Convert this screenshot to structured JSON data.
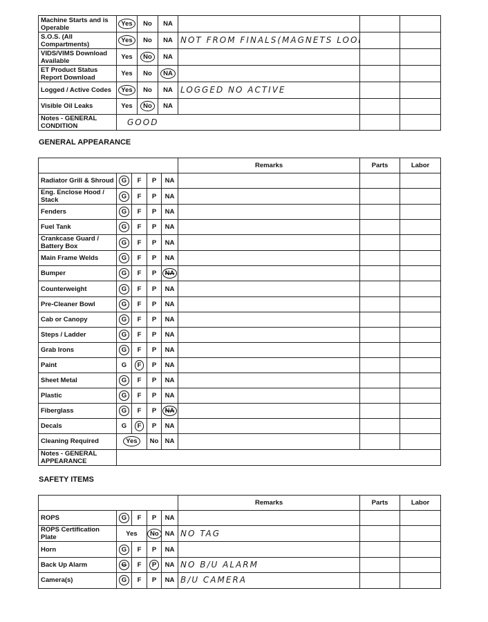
{
  "top": {
    "options": [
      "Yes",
      "No",
      "NA"
    ],
    "rows": [
      {
        "label": "Machine Starts and is Operable",
        "selected": "Yes",
        "remarks": ""
      },
      {
        "label": "S.O.S. (All Compartments)",
        "selected": "Yes",
        "remarks": "NOT FROM FINALS(MAGNETS LOOK OK"
      },
      {
        "label": "VIDS/VIMS Download Available",
        "selected": "No",
        "remarks": ""
      },
      {
        "label": "ET Product Status Report Download",
        "selected": "NA",
        "remarks": ""
      },
      {
        "label": "Logged / Active Codes",
        "selected": "Yes",
        "remarks": "LOGGED      NO ACTIVE"
      },
      {
        "label": "Visible Oil Leaks",
        "selected": "No",
        "remarks": ""
      }
    ],
    "notes": {
      "label": "Notes - GENERAL CONDITION",
      "value": "GOOD"
    }
  },
  "general": {
    "title": "GENERAL APPEARANCE",
    "headers": {
      "remarks": "Remarks",
      "parts": "Parts",
      "labor": "Labor"
    },
    "options": [
      "G",
      "F",
      "P",
      "NA"
    ],
    "rows": [
      {
        "label": "Radiator Grill & Shroud",
        "selected": "G"
      },
      {
        "label": "Eng. Enclose Hood / Stack",
        "selected": "G"
      },
      {
        "label": "Fenders",
        "selected": "G"
      },
      {
        "label": "Fuel Tank",
        "selected": "G"
      },
      {
        "label": "Crankcase Guard / Battery Box",
        "selected": "G"
      },
      {
        "label": "Main Frame Welds",
        "selected": "G"
      },
      {
        "label": "Bumper",
        "selected": "G",
        "crossed": "NA"
      },
      {
        "label": "Counterweight",
        "selected": "G"
      },
      {
        "label": "Pre-Cleaner Bowl",
        "selected": "G"
      },
      {
        "label": "Cab or Canopy",
        "selected": "G"
      },
      {
        "label": "Steps / Ladder",
        "selected": "G"
      },
      {
        "label": "Grab Irons",
        "selected": "G"
      },
      {
        "label": "Paint",
        "selected": "F"
      },
      {
        "label": "Sheet Metal",
        "selected": "G"
      },
      {
        "label": "Plastic",
        "selected": "G"
      },
      {
        "label": "Fiberglass",
        "selected": "G",
        "crossed": "NA"
      },
      {
        "label": "Decals",
        "selected": "F"
      },
      {
        "label": "Cleaning Required",
        "options": [
          "Yes",
          "No",
          "NA"
        ],
        "selected": "Yes"
      }
    ],
    "notes": {
      "label": "Notes - GENERAL APPEARANCE",
      "value": ""
    }
  },
  "safety": {
    "title": "SAFETY ITEMS",
    "headers": {
      "remarks": "Remarks",
      "parts": "Parts",
      "labor": "Labor"
    },
    "options": [
      "G",
      "F",
      "P",
      "NA"
    ],
    "rows": [
      {
        "label": "ROPS",
        "selected": "G",
        "remarks": ""
      },
      {
        "label": "ROPS Certification Plate",
        "options": [
          "Yes",
          "No",
          "NA"
        ],
        "selected": "No",
        "remarks": "NO TAG"
      },
      {
        "label": "Horn",
        "selected": "G",
        "remarks": ""
      },
      {
        "label": "Back Up Alarm",
        "selected": "P",
        "crossed": "G",
        "remarks": "NO B/U ALARM"
      },
      {
        "label": "Camera(s)",
        "selected": "G",
        "remarks": "B/U CAMERA"
      }
    ]
  }
}
